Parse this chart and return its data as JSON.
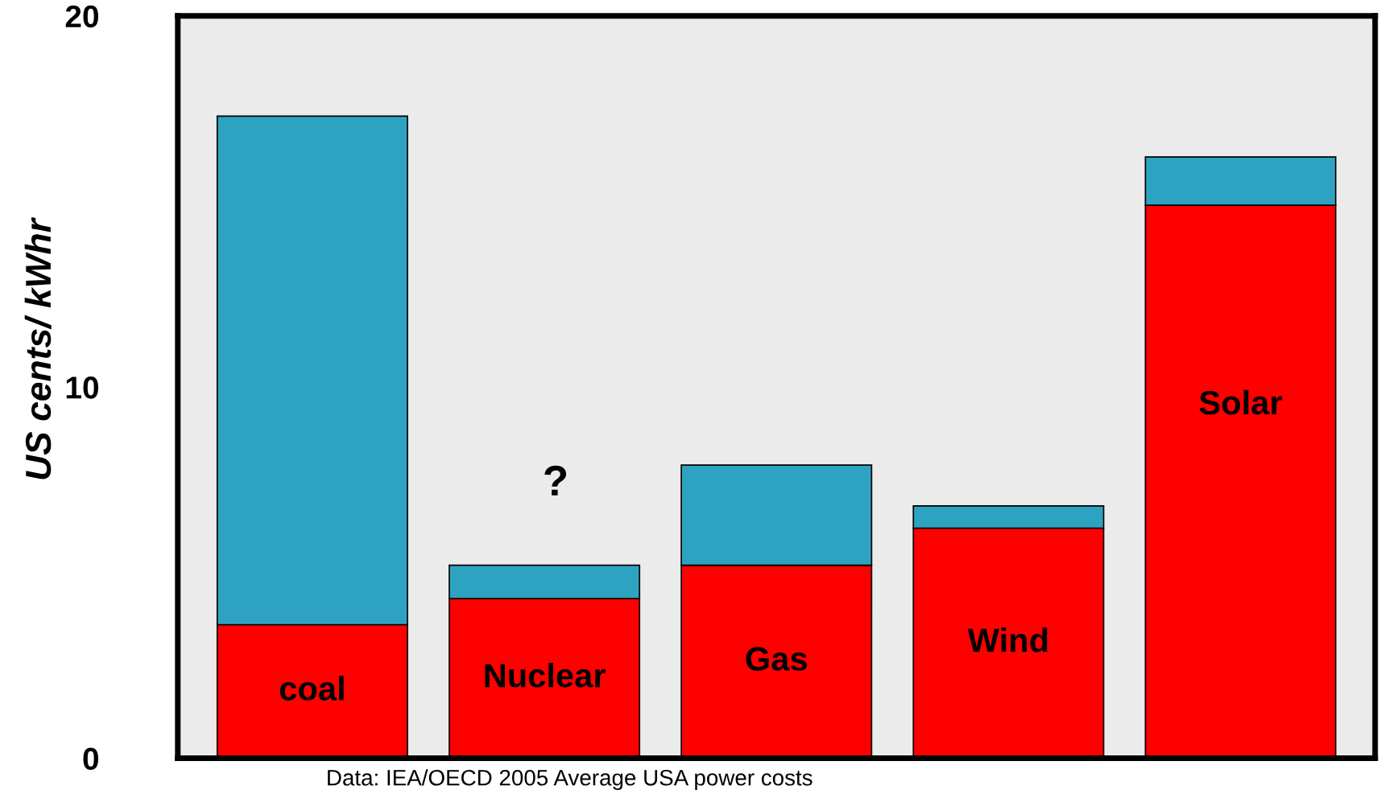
{
  "chart_data": {
    "type": "bar",
    "stacked": true,
    "categories": [
      "coal",
      "Nuclear",
      "Gas",
      "Wind",
      "Solar"
    ],
    "series": [
      {
        "color": "#ff0000",
        "values": [
          3.6,
          4.3,
          5.2,
          6.2,
          14.9
        ]
      },
      {
        "color": "#2ea3c1",
        "values": [
          13.7,
          0.9,
          2.7,
          0.6,
          1.3
        ]
      }
    ],
    "ylabel": "US cents/ kWhr",
    "ylim": [
      0,
      20
    ],
    "yticks": [
      0,
      10,
      20
    ],
    "grid": false,
    "legend": false,
    "annotations": [
      "?",
      "Data: IEA/OECD 2005 Average USA power costs"
    ]
  }
}
